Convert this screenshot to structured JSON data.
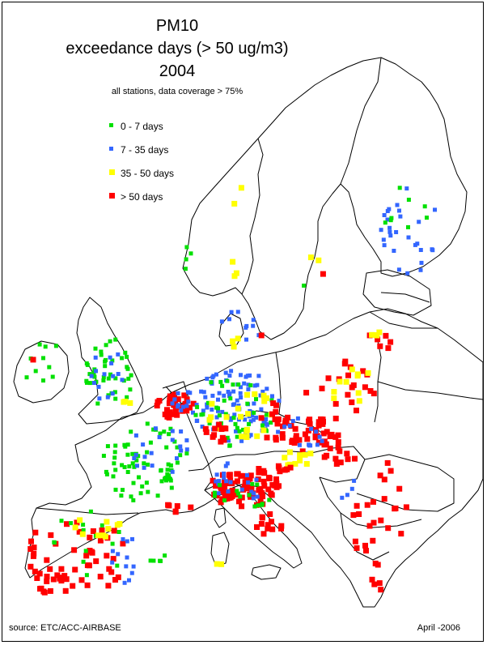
{
  "title": {
    "line1": "PM10",
    "line2": "exceedance days (> 50 ug/m3)",
    "line3": "2004",
    "subtitle": "all stations, data coverage > 75%"
  },
  "legend": [
    {
      "label": "0 - 7 days",
      "color": "#00e000",
      "key": "green"
    },
    {
      "label": "7 - 35 days",
      "color": "#3366ff",
      "key": "blue"
    },
    {
      "label": "35 - 50 days",
      "color": "#ffff00",
      "key": "yellow"
    },
    {
      "label": "> 50 days",
      "color": "#ff0000",
      "key": "red"
    }
  ],
  "footer": {
    "source": "source: ETC/ACC-AIRBASE",
    "date": "April -2006"
  }
}
